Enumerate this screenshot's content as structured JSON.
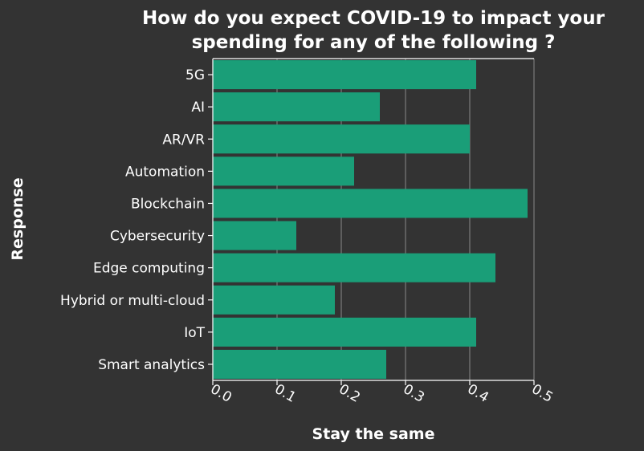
{
  "chart_data": {
    "type": "bar",
    "orientation": "horizontal",
    "title_lines": [
      "How do you expect COVID-19 to impact your",
      "spending for any of the following ?"
    ],
    "xlabel": "Stay the same",
    "ylabel": "Response",
    "categories": [
      "5G",
      "AI",
      "AR/VR",
      "Automation",
      "Blockchain",
      "Cybersecurity",
      "Edge computing",
      "Hybrid or multi-cloud",
      "IoT",
      "Smart analytics"
    ],
    "values": [
      0.41,
      0.26,
      0.4,
      0.22,
      0.49,
      0.13,
      0.44,
      0.19,
      0.41,
      0.27
    ],
    "xlim": [
      0,
      0.5
    ],
    "xticks": [
      "0.0",
      "0.1",
      "0.2",
      "0.3",
      "0.4",
      "0.5"
    ],
    "grid": "vertical",
    "bar_color": "#1a9e78",
    "background_color": "#333333",
    "text_color": "#ffffff"
  }
}
